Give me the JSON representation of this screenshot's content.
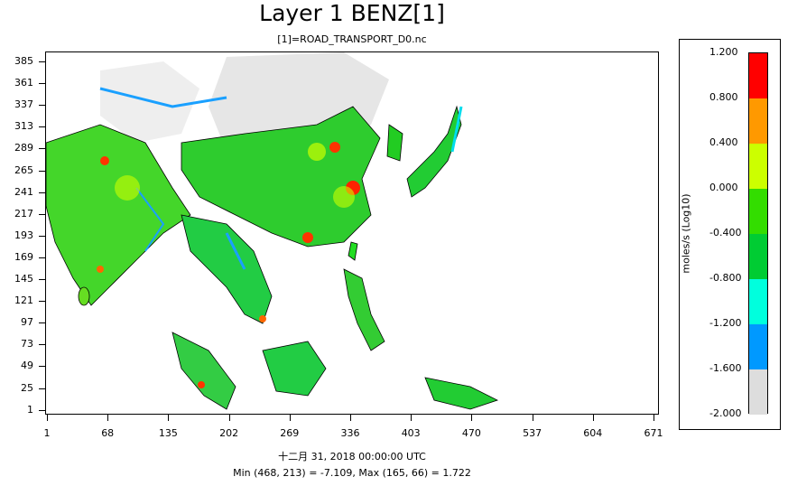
{
  "title": "Layer 1 BENZ[1]",
  "subtitle": "[1]=ROAD_TRANSPORT_D0.nc",
  "footer_time": "十二月 31, 2018 00:00:00 UTC",
  "footer_stats": "Min (468, 213) = -7.109, Max (165, 66) = 1.722",
  "y_ticks": [
    "385",
    "361",
    "337",
    "313",
    "289",
    "265",
    "241",
    "217",
    "193",
    "169",
    "145",
    "121",
    "97",
    "73",
    "49",
    "25",
    "1"
  ],
  "x_ticks": [
    "1",
    "68",
    "135",
    "202",
    "269",
    "336",
    "403",
    "470",
    "537",
    "604",
    "671"
  ],
  "legend": {
    "units": "moles/s (Log10)",
    "labels": [
      "1.200",
      "0.800",
      "0.400",
      "0.000",
      "-0.400",
      "-0.800",
      "-1.200",
      "-1.600",
      "-2.000"
    ],
    "colors": [
      "#ff0000",
      "#ff9900",
      "#ccff00",
      "#33dd00",
      "#00cc33",
      "#00ffdd",
      "#0099ff",
      "#dddddd"
    ]
  }
}
